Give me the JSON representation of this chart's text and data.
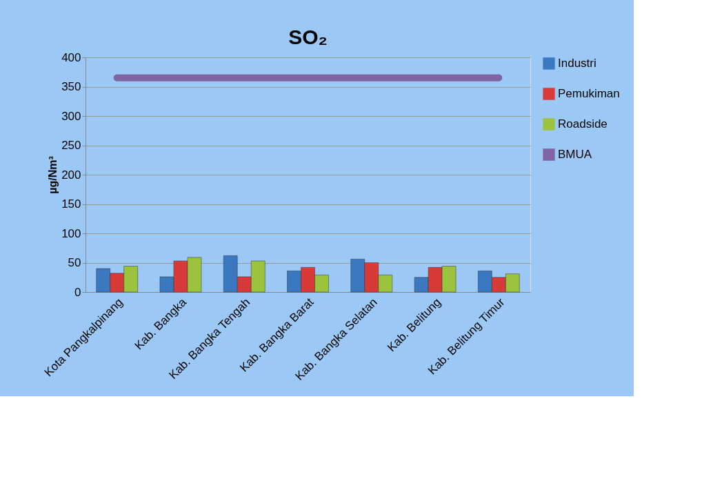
{
  "chart_data": {
    "type": "bar",
    "title": "SO₂",
    "ylabel": "µg/Nm³",
    "categories": [
      "Kota Pangkalpinang",
      "Kab. Bangka",
      "Kab. Bangka Tengah",
      "Kab. Bangka Barat",
      "Kab. Bangka Selatan",
      "Kab. Belitung",
      "Kab. Belitung Timur"
    ],
    "series": [
      {
        "name": "Industri",
        "color": "#3a78c0",
        "values": [
          40,
          26,
          62,
          36,
          56,
          25,
          36
        ]
      },
      {
        "name": "Pemukiman",
        "color": "#d83a3a",
        "values": [
          32,
          53,
          26,
          42,
          50,
          42,
          25
        ]
      },
      {
        "name": "Roadside",
        "color": "#9cc33e",
        "values": [
          44,
          59,
          53,
          29,
          29,
          44,
          31
        ]
      },
      {
        "name": "BMUA",
        "color": "#8064a2",
        "type": "line",
        "values": [
          365,
          365,
          365,
          365,
          365,
          365,
          365
        ]
      }
    ],
    "ylim": [
      0,
      400
    ],
    "yticks": [
      0,
      50,
      100,
      150,
      200,
      250,
      300,
      350,
      400
    ],
    "grid": "y",
    "legend": "right"
  }
}
